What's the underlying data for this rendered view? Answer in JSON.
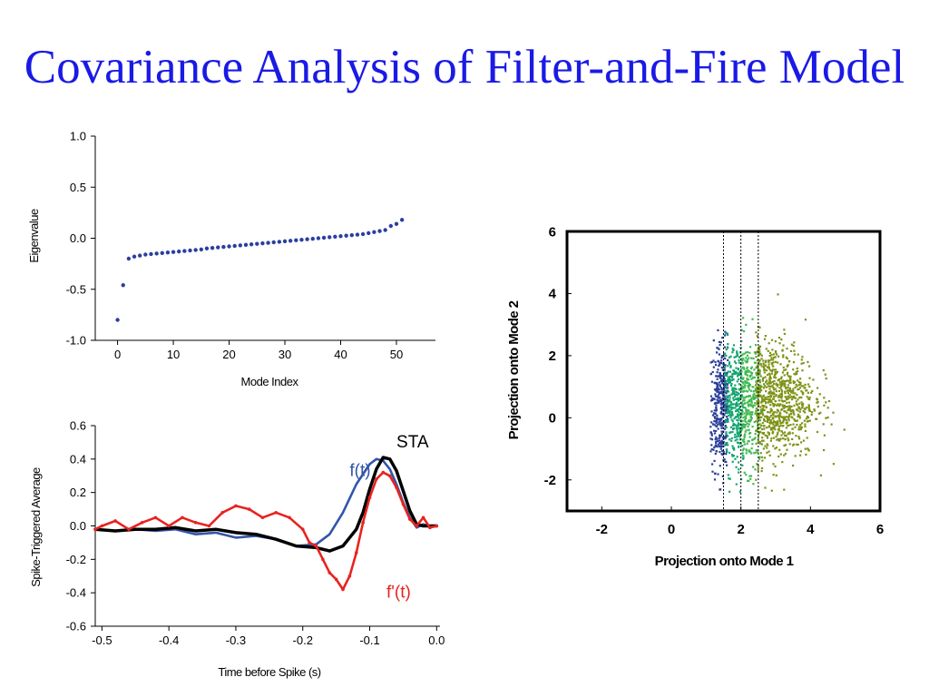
{
  "slide": {
    "title": "Covariance Analysis of Filter-and-Fire Model",
    "title_color": "#1a1ae6"
  },
  "chart_data": [
    {
      "id": "eigen",
      "type": "scatter",
      "title": "",
      "xlabel": "Mode Index",
      "ylabel": "Eigenvalue",
      "xlim": [
        -4,
        57
      ],
      "ylim": [
        -1.0,
        1.0
      ],
      "xticks": [
        0,
        10,
        20,
        30,
        40,
        50
      ],
      "xtick_labels": [
        "0",
        "10",
        "20",
        "30",
        "40",
        "50"
      ],
      "yticks": [
        -1.0,
        -0.5,
        0.0,
        0.5,
        1.0
      ],
      "ytick_labels": [
        "-1.0",
        "-0.5",
        "0.0",
        "0.5",
        "1.0"
      ],
      "grid": false,
      "legend": "none",
      "series": [
        {
          "color": "#2b3fa0",
          "x": [
            0,
            1,
            2,
            3,
            4,
            5,
            6,
            7,
            8,
            9,
            10,
            11,
            12,
            13,
            14,
            15,
            16,
            17,
            18,
            19,
            20,
            21,
            22,
            23,
            24,
            25,
            26,
            27,
            28,
            29,
            30,
            31,
            32,
            33,
            34,
            35,
            36,
            37,
            38,
            39,
            40,
            41,
            42,
            43,
            44,
            45,
            46,
            47,
            48,
            49,
            50,
            51
          ],
          "y": [
            -0.8,
            -0.46,
            -0.2,
            -0.18,
            -0.17,
            -0.16,
            -0.155,
            -0.15,
            -0.145,
            -0.14,
            -0.135,
            -0.13,
            -0.125,
            -0.12,
            -0.115,
            -0.11,
            -0.1,
            -0.095,
            -0.09,
            -0.085,
            -0.08,
            -0.075,
            -0.07,
            -0.065,
            -0.06,
            -0.055,
            -0.05,
            -0.045,
            -0.04,
            -0.035,
            -0.03,
            -0.025,
            -0.02,
            -0.015,
            -0.01,
            -0.005,
            0.0,
            0.005,
            0.01,
            0.015,
            0.02,
            0.025,
            0.03,
            0.035,
            0.04,
            0.05,
            0.06,
            0.07,
            0.08,
            0.12,
            0.14,
            0.18
          ]
        }
      ]
    },
    {
      "id": "sta",
      "type": "line",
      "title": "",
      "xlabel": "Time before Spike (s)",
      "ylabel": "Spike-Triggered Average",
      "xlim": [
        -0.51,
        0.005
      ],
      "ylim": [
        -0.6,
        0.6
      ],
      "xticks": [
        -0.5,
        -0.4,
        -0.3,
        -0.2,
        -0.1,
        0.0
      ],
      "xtick_labels": [
        "-0.5",
        "-0.4",
        "-0.3",
        "-0.2",
        "-0.1",
        "0.0"
      ],
      "yticks": [
        -0.6,
        -0.4,
        -0.2,
        0.0,
        0.2,
        0.4,
        0.6
      ],
      "ytick_labels": [
        "-0.6",
        "-0.4",
        "-0.2",
        "0.0",
        "0.2",
        "0.4",
        "0.6"
      ],
      "grid": false,
      "legend": "inline",
      "series": [
        {
          "name": "f(t)",
          "color": "#3355aa",
          "x": [
            -0.51,
            -0.48,
            -0.45,
            -0.42,
            -0.39,
            -0.36,
            -0.33,
            -0.3,
            -0.27,
            -0.24,
            -0.21,
            -0.18,
            -0.16,
            -0.14,
            -0.12,
            -0.1,
            -0.09,
            -0.08,
            -0.07,
            -0.06,
            -0.05,
            -0.04,
            -0.03,
            -0.02,
            -0.01,
            0.0
          ],
          "y": [
            -0.02,
            -0.03,
            -0.02,
            -0.03,
            -0.02,
            -0.05,
            -0.04,
            -0.07,
            -0.06,
            -0.08,
            -0.12,
            -0.11,
            -0.05,
            0.08,
            0.25,
            0.37,
            0.4,
            0.39,
            0.34,
            0.25,
            0.14,
            0.05,
            -0.01,
            0.01,
            0.0,
            0.0
          ],
          "label_text": "f(t)",
          "label_at": [
            -0.13,
            0.3
          ]
        },
        {
          "name": "STA",
          "color": "#000000",
          "x": [
            -0.51,
            -0.48,
            -0.45,
            -0.42,
            -0.39,
            -0.36,
            -0.33,
            -0.3,
            -0.27,
            -0.24,
            -0.21,
            -0.18,
            -0.16,
            -0.14,
            -0.12,
            -0.11,
            -0.1,
            -0.09,
            -0.08,
            -0.07,
            -0.06,
            -0.05,
            -0.04,
            -0.03,
            -0.02,
            -0.01,
            0.0
          ],
          "y": [
            -0.02,
            -0.03,
            -0.02,
            -0.02,
            -0.01,
            -0.03,
            -0.02,
            -0.04,
            -0.05,
            -0.08,
            -0.12,
            -0.13,
            -0.15,
            -0.12,
            -0.02,
            0.08,
            0.22,
            0.34,
            0.41,
            0.4,
            0.33,
            0.21,
            0.09,
            0.01,
            0.0,
            0.0,
            0.0
          ],
          "label_text": "STA",
          "label_at": [
            -0.06,
            0.47
          ]
        },
        {
          "name": "f'(t)",
          "color": "#e8231f",
          "x": [
            -0.51,
            -0.5,
            -0.48,
            -0.46,
            -0.44,
            -0.42,
            -0.4,
            -0.38,
            -0.36,
            -0.34,
            -0.32,
            -0.3,
            -0.28,
            -0.26,
            -0.24,
            -0.22,
            -0.2,
            -0.19,
            -0.18,
            -0.17,
            -0.16,
            -0.15,
            -0.14,
            -0.13,
            -0.12,
            -0.11,
            -0.1,
            -0.09,
            -0.08,
            -0.07,
            -0.06,
            -0.05,
            -0.04,
            -0.03,
            -0.02,
            -0.01,
            0.0
          ],
          "y": [
            -0.02,
            0.0,
            0.03,
            -0.02,
            0.02,
            0.05,
            0.0,
            0.05,
            0.02,
            0.0,
            0.08,
            0.12,
            0.1,
            0.05,
            0.08,
            0.05,
            -0.02,
            -0.1,
            -0.12,
            -0.2,
            -0.28,
            -0.32,
            -0.38,
            -0.3,
            -0.16,
            0.02,
            0.17,
            0.28,
            0.32,
            0.3,
            0.23,
            0.13,
            0.04,
            0.0,
            0.05,
            -0.01,
            0.0
          ],
          "label_text": "f'(t)",
          "label_at": [
            -0.075,
            -0.43
          ]
        }
      ]
    },
    {
      "id": "projection",
      "type": "scatter",
      "title": "",
      "xlabel": "Projection onto Mode 1",
      "ylabel": "Projection onto Mode 2",
      "xlim": [
        -3,
        6
      ],
      "ylim": [
        -3,
        6
      ],
      "xticks": [
        -2,
        0,
        2,
        4,
        6
      ],
      "xtick_labels": [
        "-2",
        "0",
        "2",
        "4",
        "6"
      ],
      "yticks": [
        -2,
        0,
        2,
        4,
        6
      ],
      "ytick_labels": [
        "-2",
        "0",
        "2",
        "4",
        "6"
      ],
      "grid": false,
      "legend": "none",
      "vlines": [
        1.5,
        2.0,
        2.5
      ],
      "series": [
        {
          "color": "#2b3f9a",
          "x_range": [
            1.1,
            1.6
          ],
          "center": [
            1.45,
            0.35
          ],
          "spread": [
            0.22,
            1.0
          ]
        },
        {
          "color": "#13a570",
          "x_range": [
            1.5,
            2.05
          ],
          "center": [
            1.8,
            0.4
          ],
          "spread": [
            0.3,
            1.05
          ]
        },
        {
          "color": "#42bb50",
          "x_range": [
            1.95,
            2.55
          ],
          "center": [
            2.2,
            0.5
          ],
          "spread": [
            0.35,
            1.05
          ]
        },
        {
          "color": "#7f9318",
          "x_range": [
            2.4,
            5.2
          ],
          "center": [
            2.8,
            0.6
          ],
          "spread": [
            0.65,
            0.95
          ]
        }
      ]
    }
  ]
}
